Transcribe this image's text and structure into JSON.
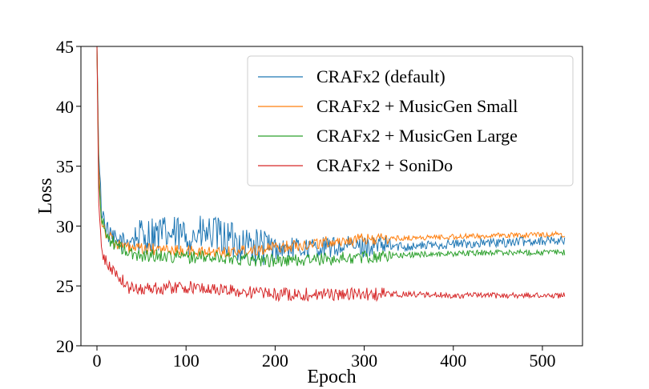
{
  "chart_data": {
    "type": "line",
    "title": "",
    "xlabel": "Epoch",
    "ylabel": "Loss",
    "xlim": [
      -18,
      545
    ],
    "ylim": [
      20,
      45
    ],
    "xticks": [
      0,
      100,
      200,
      300,
      400,
      500
    ],
    "yticks": [
      20,
      25,
      30,
      35,
      40,
      45
    ],
    "xtick_labels": [
      "0",
      "100",
      "200",
      "300",
      "400",
      "500"
    ],
    "ytick_labels": [
      "20",
      "25",
      "30",
      "35",
      "40",
      "45"
    ],
    "grid": false,
    "legend_position": "top-right",
    "series": [
      {
        "name": "CRAFx2 (default)",
        "color": "#1f77b4",
        "noise": 0.9,
        "points": [
          [
            0,
            45
          ],
          [
            2,
            36
          ],
          [
            5,
            31.5
          ],
          [
            10,
            30
          ],
          [
            15,
            29
          ],
          [
            20,
            28.8
          ],
          [
            30,
            28.6
          ],
          [
            40,
            29
          ],
          [
            60,
            29.3
          ],
          [
            100,
            29.2
          ],
          [
            130,
            29.3
          ],
          [
            150,
            28.8
          ],
          [
            180,
            28.3
          ],
          [
            200,
            28.1
          ],
          [
            250,
            28.2
          ],
          [
            300,
            28.3
          ],
          [
            350,
            28.3
          ],
          [
            400,
            28.5
          ],
          [
            450,
            28.6
          ],
          [
            500,
            28.8
          ],
          [
            525,
            28.8
          ]
        ]
      },
      {
        "name": "CRAFx2 + MusicGen Small",
        "color": "#ff7f0e",
        "noise": 0.5,
        "points": [
          [
            0,
            45
          ],
          [
            2,
            35
          ],
          [
            5,
            30.5
          ],
          [
            10,
            29.5
          ],
          [
            15,
            29
          ],
          [
            25,
            28.4
          ],
          [
            40,
            28.1
          ],
          [
            80,
            28.0
          ],
          [
            120,
            27.8
          ],
          [
            150,
            27.9
          ],
          [
            200,
            28.2
          ],
          [
            250,
            28.6
          ],
          [
            300,
            28.9
          ],
          [
            350,
            29.0
          ],
          [
            400,
            29.1
          ],
          [
            450,
            29.2
          ],
          [
            500,
            29.3
          ],
          [
            525,
            29.3
          ]
        ]
      },
      {
        "name": "CRAFx2 + MusicGen Large",
        "color": "#2ca02c",
        "noise": 0.55,
        "points": [
          [
            0,
            45
          ],
          [
            2,
            34
          ],
          [
            5,
            30.5
          ],
          [
            10,
            29.5
          ],
          [
            15,
            28.8
          ],
          [
            25,
            28.2
          ],
          [
            40,
            27.6
          ],
          [
            80,
            27.5
          ],
          [
            150,
            27.3
          ],
          [
            200,
            27.1
          ],
          [
            250,
            27.2
          ],
          [
            300,
            27.4
          ],
          [
            350,
            27.6
          ],
          [
            400,
            27.7
          ],
          [
            450,
            27.8
          ],
          [
            500,
            27.8
          ],
          [
            525,
            27.8
          ]
        ]
      },
      {
        "name": "CRAFx2 + SoniDo",
        "color": "#d62728",
        "noise": 0.55,
        "points": [
          [
            0,
            45
          ],
          [
            2,
            32
          ],
          [
            5,
            28
          ],
          [
            10,
            27
          ],
          [
            15,
            26.5
          ],
          [
            25,
            25.8
          ],
          [
            35,
            24.8
          ],
          [
            50,
            24.8
          ],
          [
            100,
            24.9
          ],
          [
            150,
            24.6
          ],
          [
            200,
            24.3
          ],
          [
            250,
            24.3
          ],
          [
            300,
            24.3
          ],
          [
            350,
            24.3
          ],
          [
            400,
            24.2
          ],
          [
            450,
            24.2
          ],
          [
            500,
            24.2
          ],
          [
            525,
            24.2
          ]
        ]
      }
    ]
  }
}
